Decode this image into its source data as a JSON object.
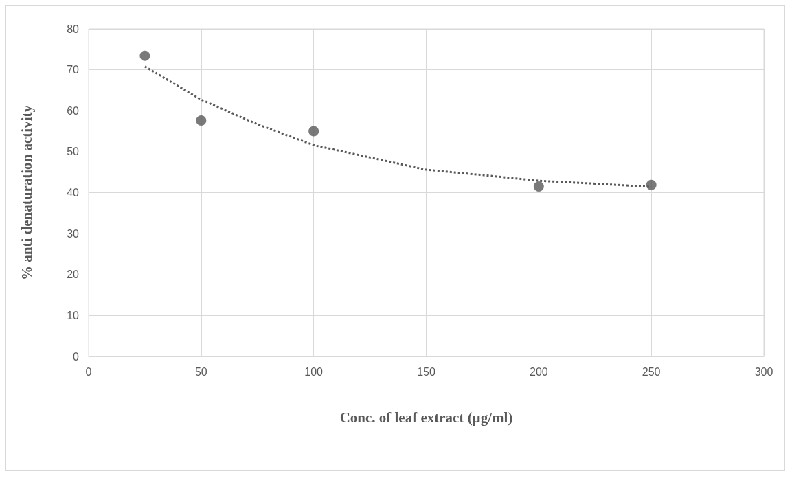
{
  "chart_data": {
    "type": "scatter",
    "xlabel": "Conc. of leaf extract (µg/ml)",
    "ylabel": "% anti denaturation activity",
    "x": [
      25,
      50,
      100,
      200,
      250
    ],
    "series": [
      {
        "color": "#595959",
        "marker": "circle",
        "values": [
          73.4,
          57.6,
          55.0,
          41.5,
          41.9
        ]
      },
      {
        "type": "line",
        "color": "#595959",
        "marker": "none",
        "line_style": "dotted",
        "x": [
          25,
          50,
          75,
          100,
          150,
          175,
          200,
          225,
          250
        ],
        "values": [
          70.8,
          62.7,
          56.7,
          51.6,
          45.6,
          44.3,
          42.9,
          42.2,
          41.4
        ]
      }
    ],
    "xlim": [
      0,
      300
    ],
    "xticks": [
      0,
      50,
      100,
      150,
      200,
      250,
      300
    ],
    "ylim": [
      0,
      80
    ],
    "yticks": [
      0,
      10,
      20,
      30,
      40,
      50,
      60,
      70,
      80
    ],
    "grid": true
  }
}
